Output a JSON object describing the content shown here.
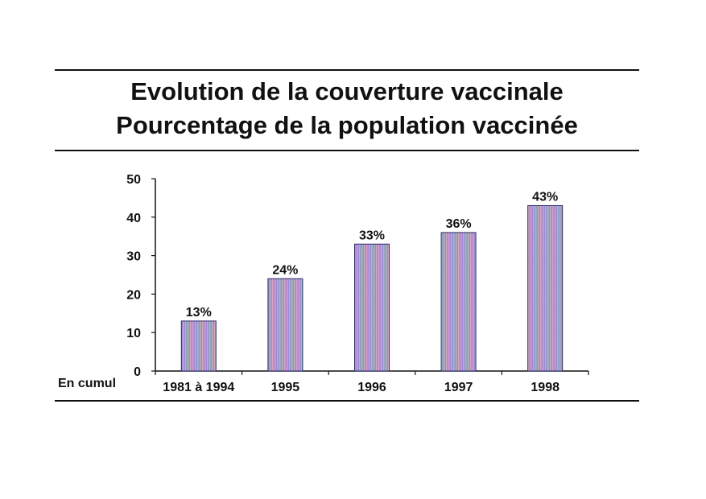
{
  "title_line1": "Evolution de la couverture vaccinale",
  "title_line2": "Pourcentage de la population vaccinée",
  "cumul_label": "En cumul",
  "colors": {
    "axis": "#111111",
    "bar_outline": "#2b2b6b",
    "bar_gradient": [
      "#9be08a",
      "#8f8ee8",
      "#b88be0",
      "#e7a8c8",
      "#f1d39a"
    ]
  },
  "chart_data": {
    "type": "bar",
    "categories": [
      "1981 à 1994",
      "1995",
      "1996",
      "1997",
      "1998"
    ],
    "values": [
      13,
      24,
      33,
      36,
      43
    ],
    "data_labels": [
      "13%",
      "24%",
      "33%",
      "36%",
      "43%"
    ],
    "ylim": [
      0,
      50
    ],
    "yticks": [
      0,
      10,
      20,
      30,
      40,
      50
    ],
    "title": "Evolution de la couverture vaccinale / Pourcentage de la population vaccinée",
    "xlabel": "",
    "ylabel": "",
    "grid": false
  }
}
